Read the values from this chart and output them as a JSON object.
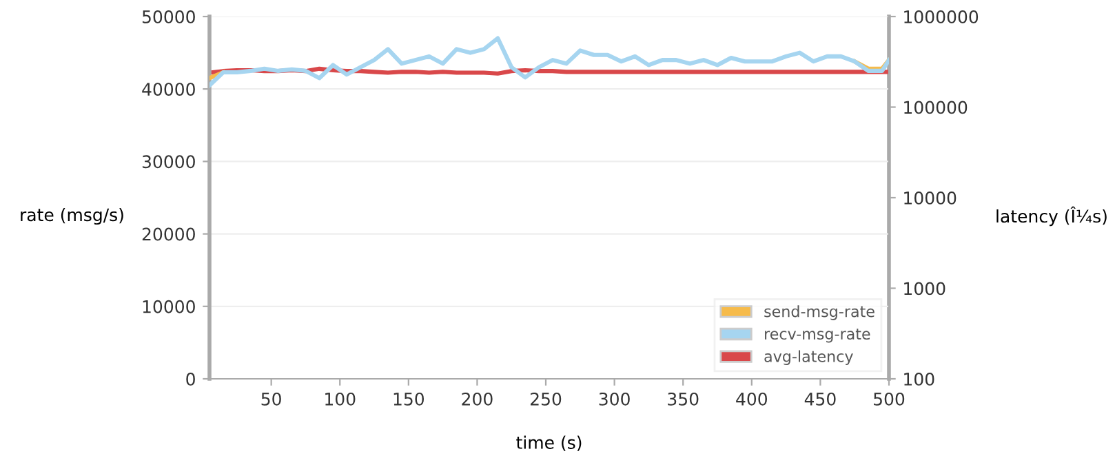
{
  "chart_data": {
    "type": "line",
    "xlabel": "time (s)",
    "ylabel": "rate (msg/s)",
    "y2label": "latency (Î¼s)",
    "x": [
      5,
      15,
      25,
      35,
      45,
      55,
      65,
      75,
      85,
      95,
      105,
      115,
      125,
      135,
      145,
      155,
      165,
      175,
      185,
      195,
      205,
      215,
      225,
      235,
      245,
      255,
      265,
      275,
      285,
      295,
      305,
      315,
      325,
      335,
      345,
      355,
      365,
      375,
      385,
      395,
      405,
      415,
      425,
      435,
      445,
      455,
      465,
      475,
      485,
      495,
      500
    ],
    "series": [
      {
        "name": "send-msg-rate",
        "color": "#f6bb4b",
        "values": [
          41500,
          42300,
          null,
          null,
          null,
          null,
          null,
          null,
          null,
          null,
          null,
          null,
          null,
          null,
          null,
          null,
          null,
          null,
          null,
          null,
          null,
          null,
          null,
          null,
          null,
          null,
          null,
          null,
          null,
          null,
          null,
          null,
          null,
          null,
          null,
          null,
          null,
          null,
          null,
          null,
          null,
          null,
          null,
          null,
          null,
          null,
          null,
          43800,
          42800,
          42800,
          44000
        ]
      },
      {
        "name": "recv-msg-rate",
        "color": "#a6d5f0",
        "values": [
          40500,
          42300,
          42300,
          42500,
          42800,
          42500,
          42700,
          42500,
          41500,
          43300,
          42000,
          43000,
          44000,
          45500,
          43500,
          44000,
          44500,
          43500,
          45500,
          45000,
          45500,
          47000,
          43000,
          41600,
          43000,
          44000,
          43500,
          45300,
          44700,
          44700,
          43800,
          44500,
          43300,
          44000,
          44000,
          43500,
          44000,
          43300,
          44300,
          43800,
          43800,
          43800,
          44500,
          45000,
          43800,
          44500,
          44500,
          43800,
          42500,
          42500,
          44000
        ]
      },
      {
        "name": "avg-latency",
        "color": "#d9484a",
        "axis": "y2",
        "values": [
          240000,
          250000,
          255000,
          255000,
          250000,
          250000,
          255000,
          250000,
          265000,
          255000,
          250000,
          250000,
          245000,
          240000,
          245000,
          245000,
          240000,
          245000,
          240000,
          240000,
          240000,
          235000,
          250000,
          255000,
          250000,
          250000,
          245000,
          245000,
          245000,
          245000,
          245000,
          245000,
          245000,
          245000,
          245000,
          245000,
          245000,
          245000,
          245000,
          245000,
          245000,
          245000,
          245000,
          245000,
          245000,
          245000,
          245000,
          245000,
          245000,
          245000,
          245000
        ]
      }
    ],
    "xlim": [
      5,
      500
    ],
    "xticks": [
      50,
      100,
      150,
      200,
      250,
      300,
      350,
      400,
      450,
      500
    ],
    "ylim": [
      0,
      50000
    ],
    "yticks": [
      0,
      10000,
      20000,
      30000,
      40000,
      50000
    ],
    "y2lim": [
      100,
      1000000
    ],
    "y2ticks": [
      100,
      1000,
      10000,
      100000,
      1000000
    ],
    "log": "y2",
    "grid": "y",
    "legend": "bottom right",
    "marker": "none",
    "line_style": "solid"
  }
}
